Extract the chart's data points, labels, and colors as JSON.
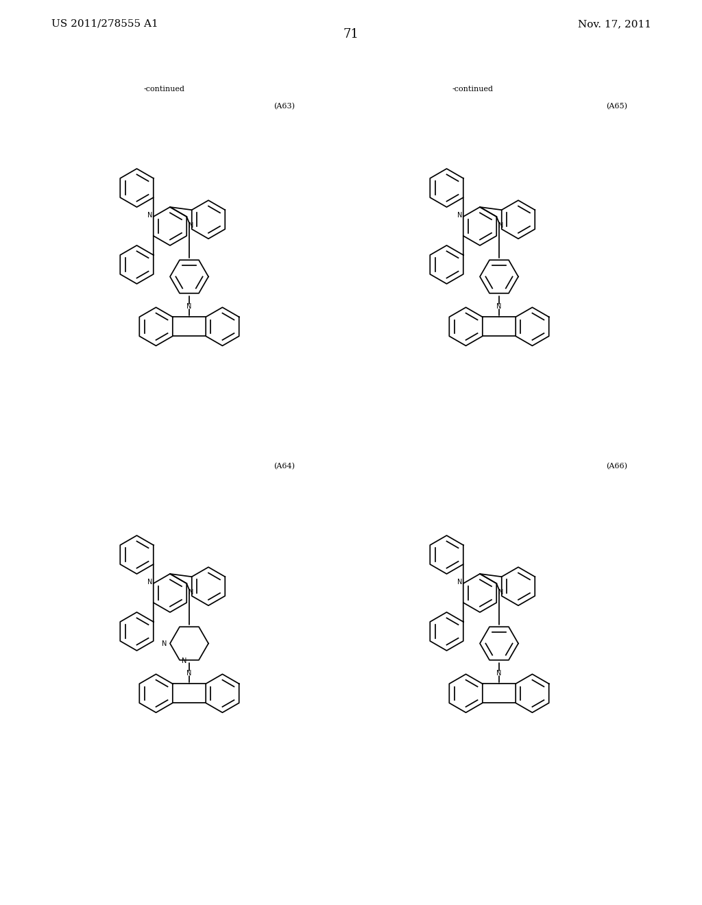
{
  "page_background": "#ffffff",
  "header_left": "US 2011/278555 A1",
  "header_right": "Nov. 17, 2011",
  "page_number": "71",
  "label_continued_1": "-continued",
  "label_continued_2": "-continued",
  "label_A63": "(A63)",
  "label_A65": "(A65)",
  "label_A64": "(A64)",
  "label_A66": "(A66)",
  "font_size_header": 11,
  "font_size_label": 8,
  "font_size_page": 13,
  "font_size_N": 7
}
